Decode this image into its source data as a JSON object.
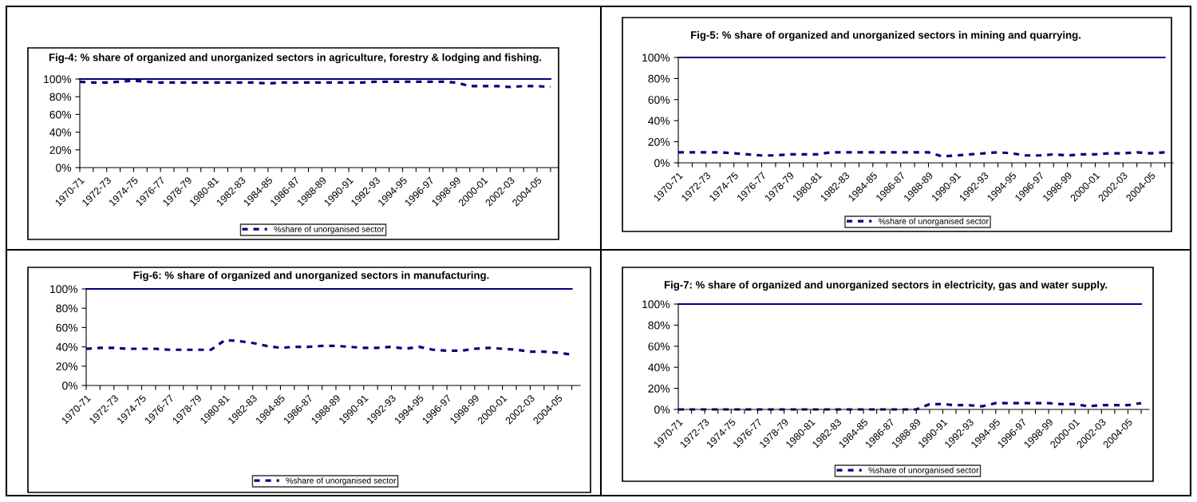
{
  "chart_data": [
    {
      "type": "line",
      "title": "Fig-4: % share of organized and unorganized sectors in agriculture, forestry & lodging and fishing.",
      "categories": [
        "1970-71",
        null,
        "1972-73",
        null,
        "1974-75",
        null,
        "1976-77",
        null,
        "1978-79",
        null,
        "1980-81",
        null,
        "1982-83",
        null,
        "1984-85",
        null,
        "1986-87",
        null,
        "1988-89",
        null,
        "1990-91",
        null,
        "1992-93",
        null,
        "1994-95",
        null,
        "1996-97",
        null,
        "1998-99",
        null,
        "2000-01",
        null,
        "2002-03",
        null,
        "2004-05",
        null
      ],
      "ylim": [
        0,
        100
      ],
      "yticks": [
        {
          "value": 0,
          "label": "0%"
        },
        {
          "value": 20,
          "label": "20%"
        },
        {
          "value": 40,
          "label": "40%"
        },
        {
          "value": 60,
          "label": "60%"
        },
        {
          "value": 80,
          "label": "80%"
        },
        {
          "value": 100,
          "label": "100%"
        }
      ],
      "legend": "bottom",
      "series": [
        {
          "color": "#000080",
          "line_style": "solid",
          "values": [
            100,
            100,
            100,
            100,
            100,
            100,
            100,
            100,
            100,
            100,
            100,
            100,
            100,
            100,
            100,
            100,
            100,
            100,
            100,
            100,
            100,
            100,
            100,
            100,
            100,
            100,
            100,
            100,
            100,
            100,
            100,
            100,
            100,
            100,
            100,
            100
          ]
        },
        {
          "name": "%share of unorganised sector",
          "color": "#000080",
          "line_style": "dashed",
          "values": [
            97,
            96,
            96,
            97,
            98,
            97,
            96,
            96,
            96,
            96,
            96,
            96,
            96,
            96,
            95,
            96,
            96,
            96,
            96,
            96,
            96,
            96,
            97,
            97,
            97,
            97,
            97,
            97,
            96,
            92,
            92,
            92,
            91,
            92,
            92,
            91
          ]
        }
      ]
    },
    {
      "type": "line",
      "title": "Fig-5: % share of organized and unorganized sectors in mining and quarrying.",
      "categories": [
        "1970-71",
        null,
        "1972-73",
        null,
        "1974-75",
        null,
        "1976-77",
        null,
        "1978-79",
        null,
        "1980-81",
        null,
        "1982-83",
        null,
        "1984-85",
        null,
        "1986-87",
        null,
        "1988-89",
        null,
        "1990-91",
        null,
        "1992-93",
        null,
        "1994-95",
        null,
        "1996-97",
        null,
        "1998-99",
        null,
        "2000-01",
        null,
        "2002-03",
        null,
        "2004-05",
        null
      ],
      "ylim": [
        0,
        100
      ],
      "yticks": [
        {
          "value": 0,
          "label": "0%"
        },
        {
          "value": 20,
          "label": "20%"
        },
        {
          "value": 40,
          "label": "40%"
        },
        {
          "value": 60,
          "label": "60%"
        },
        {
          "value": 80,
          "label": "80%"
        },
        {
          "value": 100,
          "label": "100%"
        }
      ],
      "legend": "bottom",
      "series": [
        {
          "color": "#000080",
          "line_style": "solid",
          "values": [
            100,
            100,
            100,
            100,
            100,
            100,
            100,
            100,
            100,
            100,
            100,
            100,
            100,
            100,
            100,
            100,
            100,
            100,
            100,
            100,
            100,
            100,
            100,
            100,
            100,
            100,
            100,
            100,
            100,
            100,
            100,
            100,
            100,
            100,
            100,
            100
          ]
        },
        {
          "name": "%share of unorganised sector",
          "color": "#000080",
          "line_style": "dashed",
          "values": [
            10,
            10,
            10,
            10,
            9,
            8,
            7,
            7,
            8,
            8,
            8,
            10,
            10,
            10,
            10,
            10,
            10,
            10,
            10,
            6,
            7,
            8,
            9,
            10,
            9,
            7,
            7,
            8,
            7,
            8,
            8,
            9,
            9,
            10,
            9,
            10
          ]
        }
      ]
    },
    {
      "type": "line",
      "title": "Fig-6: % share of organized and unorganized sectors in manufacturing.",
      "categories": [
        "1970-71",
        null,
        "1972-73",
        null,
        "1974-75",
        null,
        "1976-77",
        null,
        "1978-79",
        null,
        "1980-81",
        null,
        "1982-83",
        null,
        "1984-85",
        null,
        "1986-87",
        null,
        "1988-89",
        null,
        "1990-91",
        null,
        "1992-93",
        null,
        "1994-95",
        null,
        "1996-97",
        null,
        "1998-99",
        null,
        "2000-01",
        null,
        "2002-03",
        null,
        "2004-05",
        null
      ],
      "ylim": [
        0,
        100
      ],
      "yticks": [
        {
          "value": 0,
          "label": "0%"
        },
        {
          "value": 20,
          "label": "20%"
        },
        {
          "value": 40,
          "label": "40%"
        },
        {
          "value": 60,
          "label": "60%"
        },
        {
          "value": 80,
          "label": "80%"
        },
        {
          "value": 100,
          "label": "100%"
        }
      ],
      "legend": "bottom",
      "series": [
        {
          "color": "#000080",
          "line_style": "solid",
          "values": [
            100,
            100,
            100,
            100,
            100,
            100,
            100,
            100,
            100,
            100,
            100,
            100,
            100,
            100,
            100,
            100,
            100,
            100,
            100,
            100,
            100,
            100,
            100,
            100,
            100,
            100,
            100,
            100,
            100,
            100,
            100,
            100,
            100,
            100,
            100,
            100
          ]
        },
        {
          "name": "%share of unorganised sector",
          "color": "#000080",
          "line_style": "dashed",
          "values": [
            38,
            39,
            39,
            38,
            38,
            38,
            37,
            37,
            37,
            37,
            47,
            46,
            44,
            41,
            39,
            40,
            40,
            41,
            41,
            40,
            39,
            39,
            40,
            38,
            40,
            37,
            36,
            36,
            38,
            39,
            38,
            37,
            35,
            35,
            34,
            32
          ]
        }
      ]
    },
    {
      "type": "line",
      "title": "Fig-7: % share of organized and unorganized sectors in electricity, gas and water supply.",
      "categories": [
        "1970-71",
        null,
        "1972-73",
        null,
        "1974-75",
        null,
        "1976-77",
        null,
        "1978-79",
        null,
        "1980-81",
        null,
        "1982-83",
        null,
        "1984-85",
        null,
        "1986-87",
        null,
        "1988-89",
        null,
        "1990-91",
        null,
        "1992-93",
        null,
        "1994-95",
        null,
        "1996-97",
        null,
        "1998-99",
        null,
        "2000-01",
        null,
        "2002-03",
        null,
        "2004-05",
        null
      ],
      "ylim": [
        0,
        100
      ],
      "yticks": [
        {
          "value": 0,
          "label": "0%"
        },
        {
          "value": 20,
          "label": "20%"
        },
        {
          "value": 40,
          "label": "40%"
        },
        {
          "value": 60,
          "label": "60%"
        },
        {
          "value": 80,
          "label": "80%"
        },
        {
          "value": 100,
          "label": "100%"
        }
      ],
      "legend": "bottom",
      "series": [
        {
          "color": "#000080",
          "line_style": "solid",
          "values": [
            100,
            100,
            100,
            100,
            100,
            100,
            100,
            100,
            100,
            100,
            100,
            100,
            100,
            100,
            100,
            100,
            100,
            100,
            100,
            100,
            100,
            100,
            100,
            100,
            100,
            100,
            100,
            100,
            100,
            100,
            100,
            100,
            100,
            100,
            100,
            100
          ]
        },
        {
          "name": "%share of unorganised sector",
          "color": "#000080",
          "line_style": "dashed",
          "values": [
            0,
            0,
            0,
            0,
            0,
            0,
            0,
            0,
            0,
            0,
            0,
            0,
            0,
            0,
            0,
            0,
            0,
            0,
            0,
            5,
            5,
            4,
            4,
            3,
            6,
            6,
            6,
            6,
            6,
            5,
            5,
            3,
            4,
            4,
            4,
            6
          ]
        }
      ]
    }
  ]
}
